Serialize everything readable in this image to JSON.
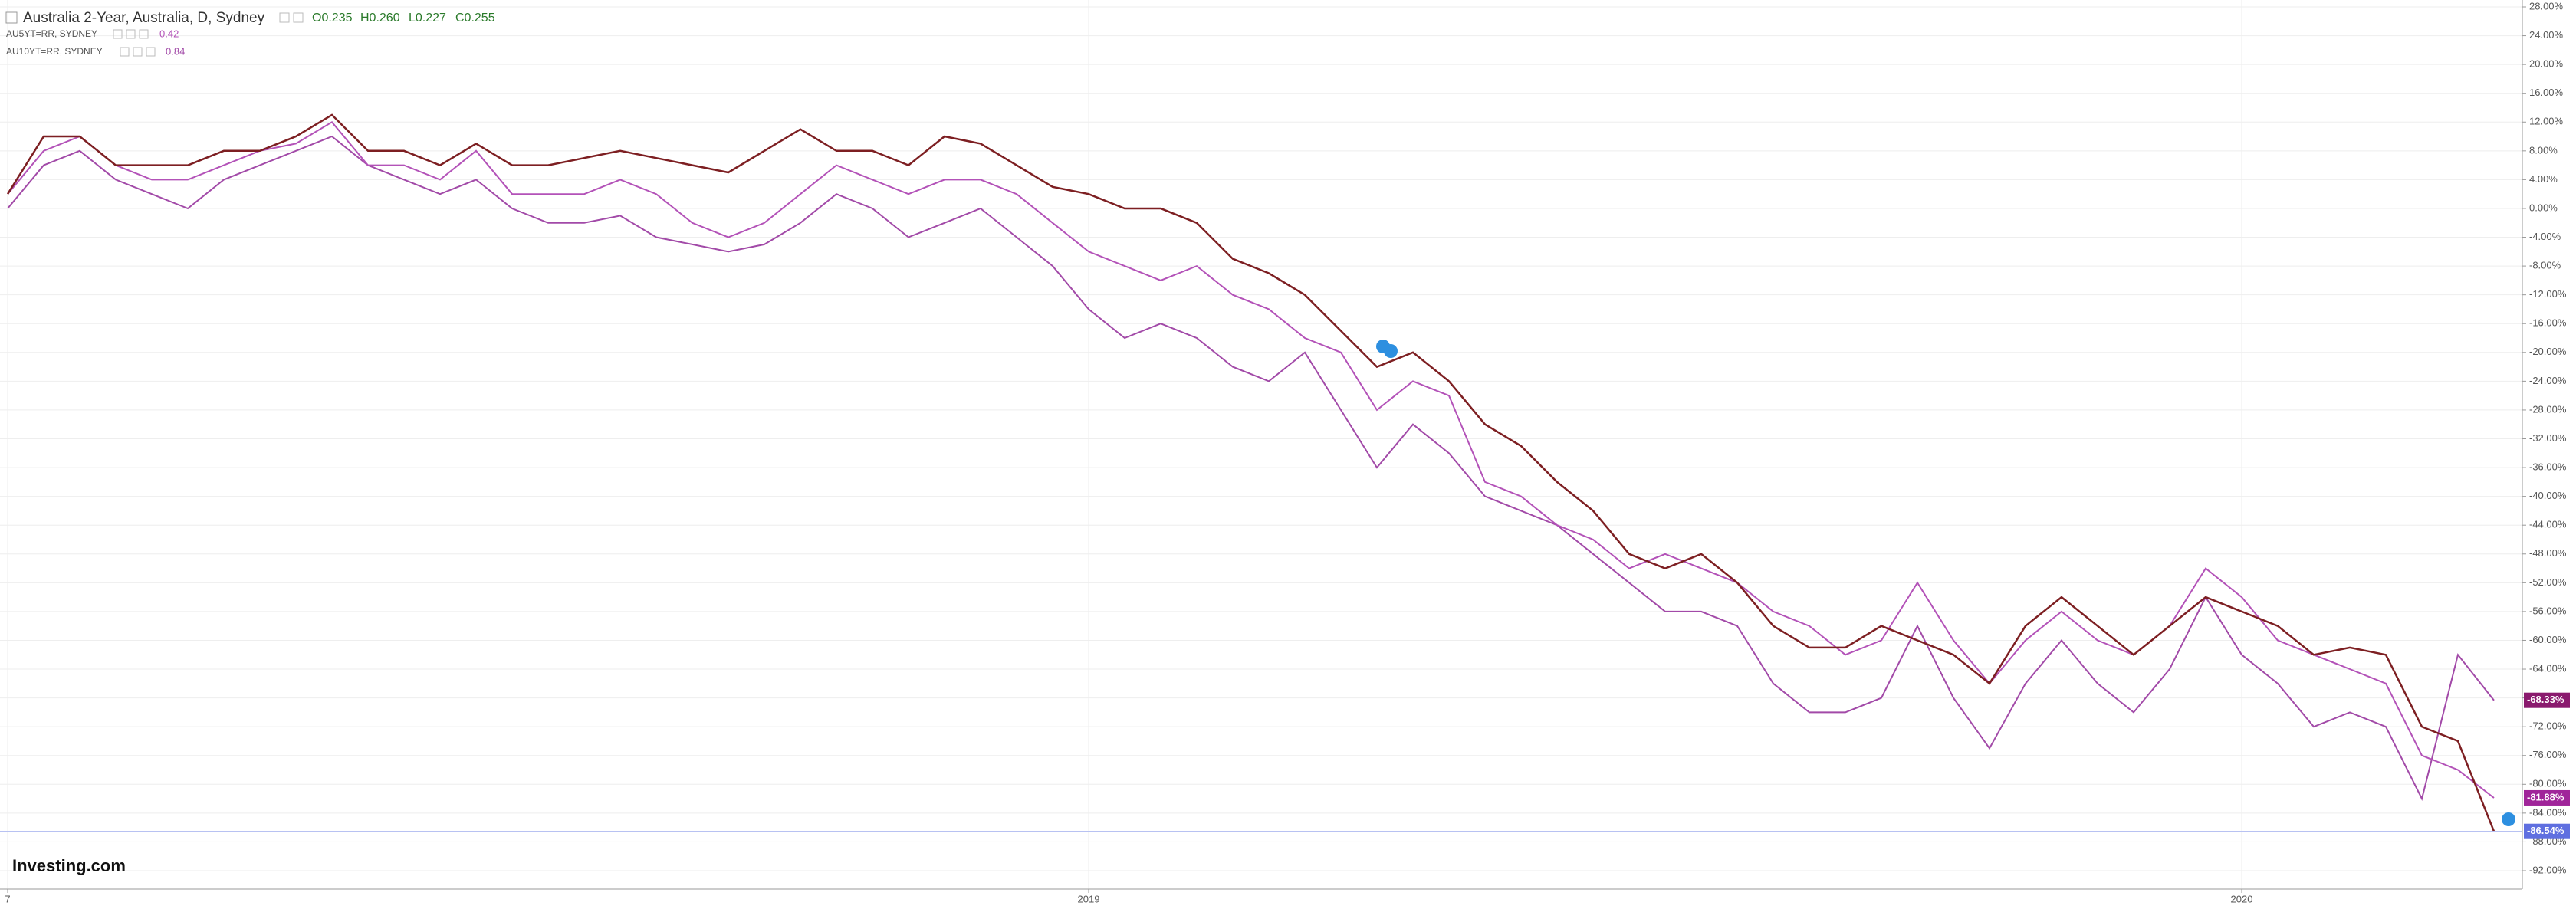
{
  "chart_data": {
    "type": "line",
    "title": "Australia 2-Year, Australia, D, Sydney",
    "ohlc": {
      "open": {
        "value": 0.235,
        "label": "O0.235"
      },
      "high": {
        "value": 0.26,
        "label": "H0.260"
      },
      "low": {
        "value": 0.227,
        "label": "L0.227"
      },
      "close": {
        "value": 0.255,
        "label": "C0.255"
      }
    },
    "logo": "Investing.com",
    "categories": [
      "7",
      null,
      null,
      null,
      null,
      null,
      null,
      null,
      null,
      null,
      null,
      null,
      null,
      null,
      null,
      null,
      null,
      null,
      null,
      null,
      null,
      null,
      null,
      null,
      null,
      null,
      null,
      null,
      null,
      null,
      "2019",
      null,
      null,
      null,
      null,
      null,
      null,
      null,
      null,
      null,
      null,
      null,
      null,
      null,
      null,
      null,
      null,
      null,
      null,
      null,
      null,
      null,
      null,
      null,
      null,
      null,
      null,
      null,
      null,
      null,
      null,
      null,
      "2020",
      null,
      null,
      null,
      null,
      null,
      null,
      null
    ],
    "series": [
      {
        "name": "AU10YT=RR, SYDNEY",
        "current": 0.84,
        "color": "#a24aa8",
        "label_color": "#8a1a6e",
        "last_value_label": "-68.33%",
        "values": [
          0,
          6,
          8,
          4,
          2,
          0,
          4,
          6,
          8,
          10,
          6,
          4,
          2,
          4,
          0,
          -2,
          -2,
          -1,
          -4,
          -5,
          -6,
          -5,
          -2,
          2,
          0,
          -4,
          -2,
          0,
          -4,
          -8,
          -14,
          -18,
          -16,
          -18,
          -22,
          -24,
          -20,
          -28,
          -36,
          -30,
          -34,
          -40,
          -42,
          -44,
          -48,
          -52,
          -56,
          -56,
          -58,
          -66,
          -70,
          -70,
          -68,
          -58,
          -68,
          -75,
          -66,
          -60,
          -66,
          -70,
          -64,
          -54,
          -62,
          -66,
          -72,
          -70,
          -72,
          -82,
          -62,
          -68.33
        ]
      },
      {
        "name": "AU5YT=RR, SYDNEY",
        "current": 0.42,
        "color": "#b352b8",
        "label_color": "#a0259a",
        "last_value_label": "-81.88%",
        "values": [
          2,
          8,
          10,
          6,
          4,
          4,
          6,
          8,
          9,
          12,
          6,
          6,
          4,
          8,
          2,
          2,
          2,
          4,
          2,
          -2,
          -4,
          -2,
          2,
          6,
          4,
          2,
          4,
          4,
          2,
          -2,
          -6,
          -8,
          -10,
          -8,
          -12,
          -14,
          -18,
          -20,
          -28,
          -24,
          -26,
          -38,
          -40,
          -44,
          -46,
          -50,
          -48,
          -50,
          -52,
          -56,
          -58,
          -62,
          -60,
          -52,
          -60,
          -66,
          -60,
          -56,
          -60,
          -62,
          -58,
          -50,
          -54,
          -60,
          -62,
          -64,
          -66,
          -76,
          -78,
          -81.88
        ]
      },
      {
        "name": "Australia 2-Year, Australia, D, Sydney",
        "color": "#7d1f22",
        "label_color": "#5f6fe0",
        "last_value_label": "-86.54%",
        "values": [
          2,
          10,
          10,
          6,
          6,
          6,
          8,
          8,
          10,
          13,
          8,
          8,
          6,
          9,
          6,
          6,
          7,
          8,
          7,
          6,
          5,
          8,
          11,
          8,
          8,
          6,
          10,
          9,
          6,
          3,
          2,
          0,
          0,
          -2,
          -7,
          -9,
          -12,
          -17,
          -22,
          -20,
          -24,
          -30,
          -33,
          -38,
          -42,
          -48,
          -50,
          -48,
          -52,
          -58,
          -61,
          -61,
          -58,
          -60,
          -62,
          -66,
          -58,
          -54,
          -58,
          -62,
          -58,
          -54,
          -56,
          -58,
          -62,
          -61,
          -62,
          -72,
          -74,
          -86.54
        ]
      }
    ],
    "ylim": [
      28,
      -92
    ],
    "yticks": [
      {
        "value": 28,
        "label": "28.00%"
      },
      {
        "value": 24,
        "label": "24.00%"
      },
      {
        "value": 20,
        "label": "20.00%"
      },
      {
        "value": 16,
        "label": "16.00%"
      },
      {
        "value": 12,
        "label": "12.00%"
      },
      {
        "value": 8,
        "label": "8.00%"
      },
      {
        "value": 4,
        "label": "4.00%"
      },
      {
        "value": 0,
        "label": "0.00%"
      },
      {
        "value": -4,
        "label": "-4.00%"
      },
      {
        "value": -8,
        "label": "-8.00%"
      },
      {
        "value": -12,
        "label": "-12.00%"
      },
      {
        "value": -16,
        "label": "-16.00%"
      },
      {
        "value": -20,
        "label": "-20.00%"
      },
      {
        "value": -24,
        "label": "-24.00%"
      },
      {
        "value": -28,
        "label": "-28.00%"
      },
      {
        "value": -32,
        "label": "-32.00%"
      },
      {
        "value": -36,
        "label": "-36.00%"
      },
      {
        "value": -40,
        "label": "-40.00%"
      },
      {
        "value": -44,
        "label": "-44.00%"
      },
      {
        "value": -48,
        "label": "-48.00%"
      },
      {
        "value": -52,
        "label": "-52.00%"
      },
      {
        "value": -56,
        "label": "-56.00%"
      },
      {
        "value": -60,
        "label": "-60.00%"
      },
      {
        "value": -64,
        "label": "-64.00%"
      },
      {
        "value": -68,
        "label": "-68.00%"
      },
      {
        "value": -72,
        "label": "-72.00%"
      },
      {
        "value": -76,
        "label": "-76.00%"
      },
      {
        "value": -80,
        "label": "-80.00%"
      },
      {
        "value": -84,
        "label": "-84.00%"
      },
      {
        "value": -88,
        "label": "-88.00%"
      },
      {
        "value": -92,
        "label": "-92.00%"
      }
    ],
    "grid": true
  }
}
